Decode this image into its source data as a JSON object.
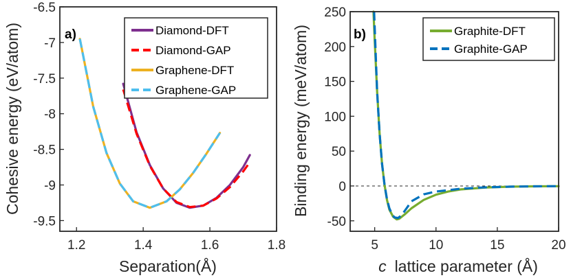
{
  "chart_data": [
    {
      "type": "line",
      "panel_label": "a)",
      "xlabel": "Separation(Å)",
      "ylabel": "Cohesive energy (eV/atom)",
      "xlim": [
        1.15,
        1.8
      ],
      "ylim": [
        -9.65,
        -6.5
      ],
      "xticks": [
        1.2,
        1.4,
        1.6,
        1.8
      ],
      "xtick_labels": [
        "1.2",
        "1.4",
        "1.6",
        "1.8"
      ],
      "yticks": [
        -6.5,
        -7,
        -7.5,
        -8,
        -8.5,
        -9,
        -9.5
      ],
      "ytick_labels": [
        "-6.5",
        "-7",
        "-7.5",
        "-8",
        "-8.5",
        "-9",
        "-9.5"
      ],
      "legend_position": "top-right",
      "series": [
        {
          "name": "Diamond-DFT",
          "color": "#7e2f8e",
          "style": "solid",
          "x": [
            1.34,
            1.38,
            1.42,
            1.46,
            1.5,
            1.54,
            1.58,
            1.62,
            1.66,
            1.7,
            1.72
          ],
          "y": [
            -7.58,
            -8.26,
            -8.72,
            -9.05,
            -9.25,
            -9.32,
            -9.29,
            -9.18,
            -9.0,
            -8.75,
            -8.58
          ]
        },
        {
          "name": "Diamond-GAP",
          "color": "#ff0000",
          "style": "dashed",
          "x": [
            1.34,
            1.38,
            1.42,
            1.46,
            1.5,
            1.54,
            1.58,
            1.62,
            1.66,
            1.7,
            1.72
          ],
          "y": [
            -7.66,
            -8.28,
            -8.73,
            -9.05,
            -9.24,
            -9.31,
            -9.29,
            -9.19,
            -9.03,
            -8.81,
            -8.68
          ]
        },
        {
          "name": "Graphene-DFT",
          "color": "#edb120",
          "style": "solid",
          "x": [
            1.21,
            1.25,
            1.29,
            1.33,
            1.37,
            1.42,
            1.47,
            1.51,
            1.55,
            1.59,
            1.63
          ],
          "y": [
            -6.95,
            -7.9,
            -8.55,
            -8.98,
            -9.23,
            -9.32,
            -9.23,
            -9.06,
            -8.83,
            -8.56,
            -8.27
          ]
        },
        {
          "name": "Graphene-GAP",
          "color": "#4dbeee",
          "style": "dashed",
          "x": [
            1.21,
            1.25,
            1.29,
            1.33,
            1.37,
            1.42,
            1.47,
            1.51,
            1.55,
            1.59,
            1.63
          ],
          "y": [
            -6.95,
            -7.9,
            -8.55,
            -8.98,
            -9.23,
            -9.32,
            -9.23,
            -9.06,
            -8.83,
            -8.56,
            -8.27
          ]
        }
      ]
    },
    {
      "type": "line",
      "panel_label": "b)",
      "xlabel_italic": "c",
      "xlabel": "lattice parameter (Å)",
      "ylabel": "Binding energy (meV/atom)",
      "xlim": [
        3,
        20
      ],
      "ylim": [
        -65,
        250
      ],
      "xticks": [
        5,
        10,
        15,
        20
      ],
      "xtick_labels": [
        "5",
        "10",
        "15",
        "20"
      ],
      "yticks": [
        250,
        200,
        150,
        100,
        50,
        0,
        -50
      ],
      "ytick_labels": [
        "250",
        "200",
        "150",
        "100",
        "50",
        "0",
        "-50"
      ],
      "reference_line": 0,
      "legend_position": "top-right",
      "series": [
        {
          "name": "Graphite-DFT",
          "color": "#77ac30",
          "style": "solid",
          "x": [
            4.9,
            5.0,
            5.2,
            5.4,
            5.6,
            5.8,
            6.0,
            6.2,
            6.5,
            6.8,
            7.0,
            7.5,
            8.0,
            9.0,
            10.0,
            11.0,
            12.0,
            14.0,
            16.0,
            18.0,
            20.0
          ],
          "y": [
            250,
            210,
            135,
            75,
            32,
            2,
            -20,
            -34,
            -44,
            -48,
            -47,
            -40,
            -32,
            -20,
            -12.5,
            -8,
            -5,
            -2.3,
            -1,
            -0.5,
            -0.3
          ]
        },
        {
          "name": "Graphite-GAP",
          "color": "#0072bd",
          "style": "dashed",
          "x": [
            4.95,
            5.05,
            5.2,
            5.4,
            5.6,
            5.8,
            6.0,
            6.2,
            6.4,
            6.6,
            6.9,
            7.2,
            7.6,
            8.0,
            9.0,
            10.0,
            11.0,
            12.0,
            14.0,
            16.0,
            18.0,
            20.0
          ],
          "y": [
            250,
            205,
            135,
            75,
            32,
            2,
            -19,
            -32,
            -40,
            -45,
            -46,
            -42,
            -32,
            -22,
            -12,
            -8,
            -6,
            -4,
            -2,
            -1,
            -0.5,
            -0.3
          ]
        }
      ]
    }
  ]
}
